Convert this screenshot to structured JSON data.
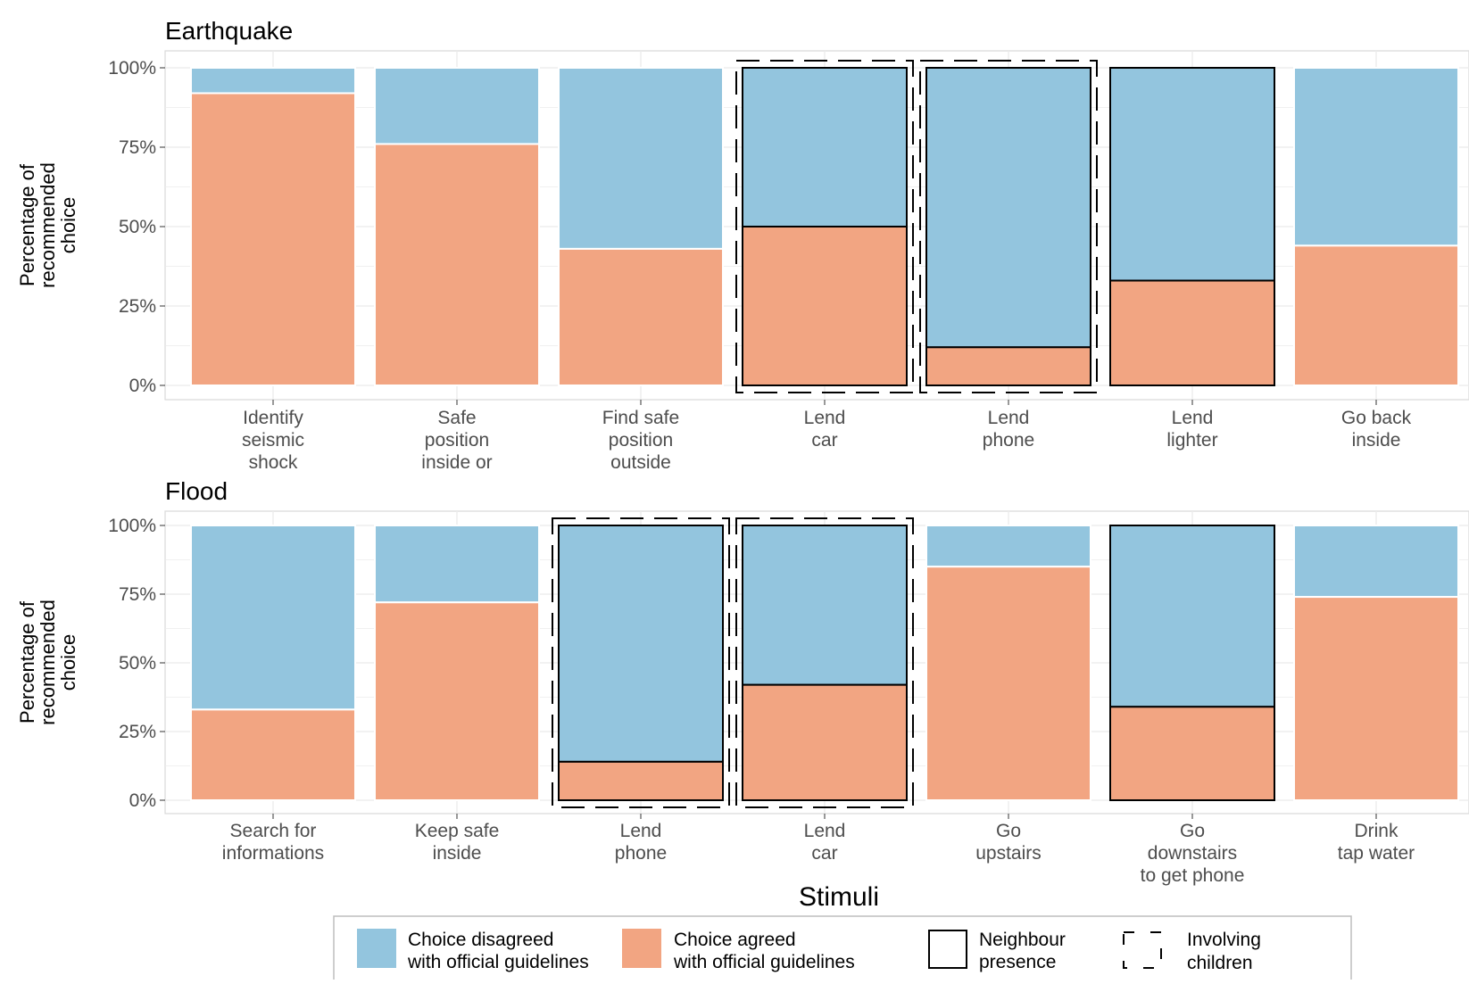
{
  "chart_data": [
    {
      "type": "bar",
      "stacked": true,
      "title": "Earthquake",
      "ylabel": "Percentage of\nrecommended\nchoice",
      "ylim": [
        0,
        100
      ],
      "yticks": [
        "0%",
        "25%",
        "50%",
        "75%",
        "100%"
      ],
      "categories": [
        "Identify\nseismic\nshock",
        "Safe\nposition\ninside or",
        "Find safe\nposition\noutside",
        "Lend\ncar",
        "Lend\nphone",
        "Lend\nlighter",
        "Go back\ninside"
      ],
      "series": [
        {
          "name": "Choice agreed\nwith official guidelines",
          "values": [
            92,
            76,
            43,
            50,
            12,
            33,
            44
          ]
        },
        {
          "name": "Choice disagreed\nwith official guidelines",
          "values": [
            8,
            24,
            57,
            50,
            88,
            67,
            56
          ]
        }
      ],
      "neighbour_presence": [
        false,
        false,
        false,
        true,
        true,
        true,
        false
      ],
      "involving_children": [
        false,
        false,
        false,
        true,
        true,
        false,
        false
      ],
      "grid": true
    },
    {
      "type": "bar",
      "stacked": true,
      "title": "Flood",
      "ylabel": "Percentage of\nrecommended\nchoice",
      "ylim": [
        0,
        100
      ],
      "yticks": [
        "0%",
        "25%",
        "50%",
        "75%",
        "100%"
      ],
      "categories": [
        "Search for\ninformations",
        "Keep safe\ninside",
        "Lend\nphone",
        "Lend\ncar",
        "Go\nupstairs",
        "Go\ndownstairs\nto get phone",
        "Drink\ntap water"
      ],
      "series": [
        {
          "name": "Choice agreed\nwith official guidelines",
          "values": [
            33,
            72,
            14,
            42,
            85,
            34,
            74
          ]
        },
        {
          "name": "Choice disagreed\nwith official guidelines",
          "values": [
            67,
            28,
            86,
            58,
            15,
            66,
            26
          ]
        }
      ],
      "neighbour_presence": [
        false,
        false,
        true,
        true,
        false,
        true,
        false
      ],
      "involving_children": [
        false,
        false,
        true,
        true,
        false,
        false,
        false
      ],
      "grid": true
    }
  ],
  "x_title": "Stimuli",
  "colors": {
    "agreed": "#f2a582",
    "disagreed": "#93c5de",
    "outline": "#000000",
    "panel_bg": "#ffffff",
    "grid": "#ebebeb"
  },
  "legend": {
    "placement": "bottom",
    "items": [
      {
        "key": "disagreed",
        "label": "Choice disagreed\nwith official guidelines"
      },
      {
        "key": "agreed",
        "label": "Choice agreed\nwith official guidelines"
      },
      {
        "key": "neighbour",
        "label": "Neighbour\npresence"
      },
      {
        "key": "children",
        "label": "Involving\nchildren"
      }
    ]
  }
}
